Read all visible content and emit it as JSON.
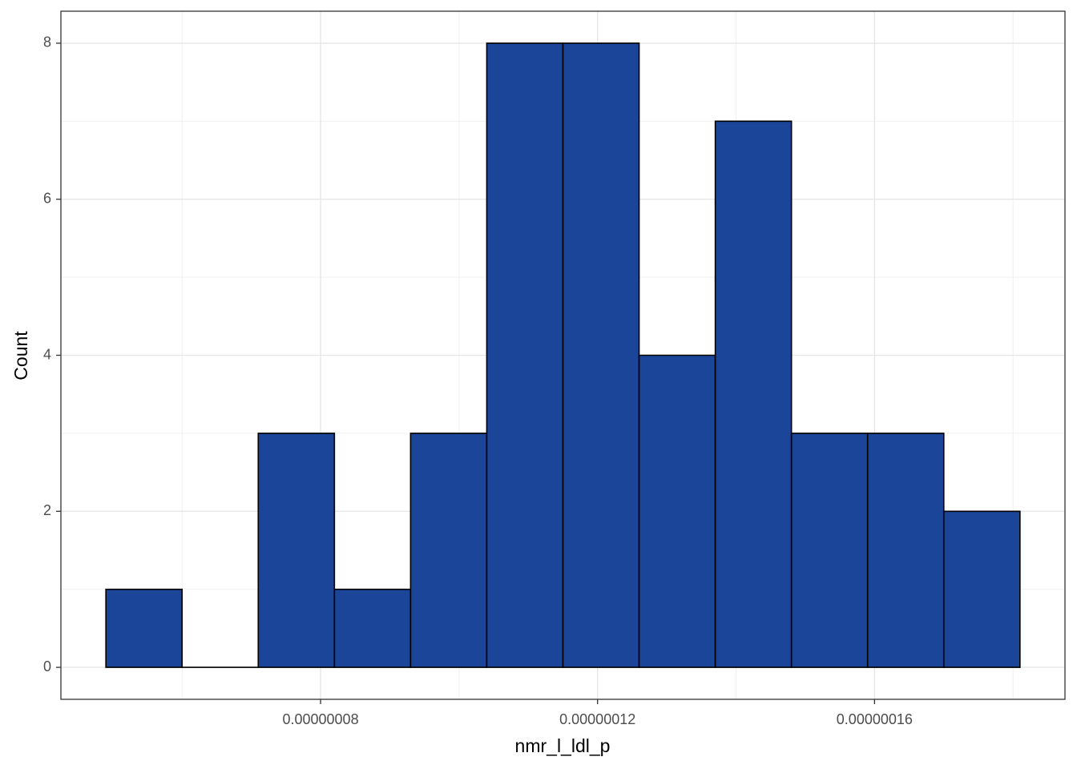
{
  "chart_data": {
    "type": "histogram",
    "xlabel": "nmr_l_ldl_p",
    "ylabel": "Count",
    "bins": [
      4.9e-08,
      6e-08,
      7.1e-08,
      8.2e-08,
      9.3e-08,
      1.04e-07,
      1.15e-07,
      1.26e-07,
      1.37e-07,
      1.48e-07,
      1.59e-07,
      1.7e-07,
      1.81e-07
    ],
    "counts": [
      1,
      0,
      3,
      1,
      3,
      8,
      8,
      4,
      7,
      3,
      3,
      2
    ],
    "color": "#1a4599",
    "edgecolor": "#000000",
    "xlim": [
      4.25e-08,
      1.875e-07
    ],
    "xticks": [
      {
        "value": 8e-08,
        "label": "0.00000008"
      },
      {
        "value": 1.2e-07,
        "label": "0.00000012"
      },
      {
        "value": 1.6e-07,
        "label": "0.00000016"
      }
    ],
    "x_minor_ticks": [
      6e-08,
      1e-07,
      1.4e-07,
      1.8e-07
    ],
    "ylim": [
      -0.41,
      8.41
    ],
    "yticks": [
      0,
      2,
      4,
      6,
      8
    ],
    "y_minor_ticks": [
      1,
      3,
      5,
      7
    ],
    "grid": true
  }
}
